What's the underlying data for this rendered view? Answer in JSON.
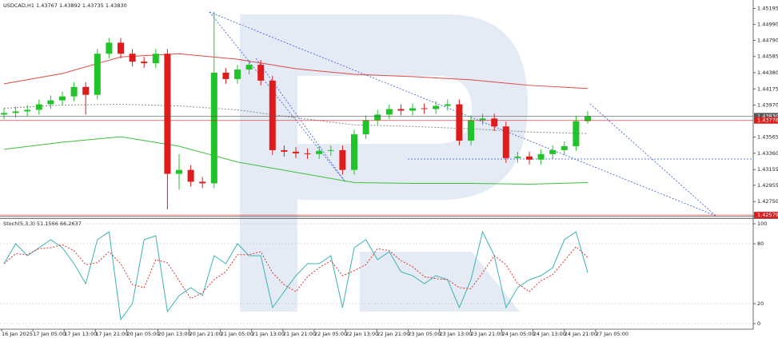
{
  "chart_data": [
    {
      "type": "candlestick",
      "title": "USDCAD,H1 1.43767 1.43892 1.43735 1.43830",
      "open": [
        1.4385,
        1.4387,
        1.4389,
        1.4391,
        1.4398,
        1.4403,
        1.4408,
        1.442,
        1.441,
        1.4462,
        1.4476,
        1.4462,
        1.4452,
        1.445,
        1.4462,
        1.431,
        1.4315,
        1.43,
        1.4298,
        1.4438,
        1.443,
        1.4442,
        1.4448,
        1.4428,
        1.434,
        1.4338,
        1.4336,
        1.4335,
        1.4339,
        1.434,
        1.4315,
        1.436,
        1.4378,
        1.4385,
        1.4392,
        1.439,
        1.4393,
        1.4392,
        1.4396,
        1.4398,
        1.4352,
        1.4378,
        1.438,
        1.437,
        1.433,
        1.4332,
        1.4328,
        1.4335,
        1.434,
        1.4345,
        1.43767
      ],
      "high": [
        1.4393,
        1.4395,
        1.4397,
        1.4404,
        1.4409,
        1.4414,
        1.4426,
        1.4426,
        1.4468,
        1.4482,
        1.4482,
        1.4468,
        1.4458,
        1.4468,
        1.4468,
        1.4335,
        1.4321,
        1.4306,
        1.4515,
        1.4444,
        1.4448,
        1.4454,
        1.4454,
        1.4434,
        1.4346,
        1.4344,
        1.4342,
        1.4345,
        1.4346,
        1.4346,
        1.4366,
        1.4384,
        1.4391,
        1.4398,
        1.4398,
        1.4399,
        1.4399,
        1.4402,
        1.4404,
        1.4404,
        1.4384,
        1.4386,
        1.4386,
        1.4376,
        1.4338,
        1.4338,
        1.4341,
        1.4346,
        1.4351,
        1.4383,
        1.43892
      ],
      "low": [
        1.4379,
        1.4381,
        1.4383,
        1.4385,
        1.4392,
        1.4397,
        1.4402,
        1.4385,
        1.4404,
        1.4456,
        1.4456,
        1.4446,
        1.4444,
        1.4444,
        1.4265,
        1.429,
        1.4294,
        1.4292,
        1.4292,
        1.4424,
        1.4424,
        1.4436,
        1.4422,
        1.4334,
        1.4332,
        1.433,
        1.4329,
        1.4329,
        1.4333,
        1.4309,
        1.4309,
        1.4354,
        1.4372,
        1.4379,
        1.4384,
        1.4384,
        1.4386,
        1.4386,
        1.439,
        1.4346,
        1.4346,
        1.4372,
        1.4364,
        1.4324,
        1.4324,
        1.4322,
        1.4322,
        1.4329,
        1.4334,
        1.4339,
        1.43735
      ],
      "close": [
        1.4387,
        1.4389,
        1.4391,
        1.4398,
        1.4403,
        1.4408,
        1.442,
        1.441,
        1.4462,
        1.4476,
        1.4462,
        1.4452,
        1.445,
        1.4462,
        1.431,
        1.4315,
        1.43,
        1.4298,
        1.4438,
        1.443,
        1.4442,
        1.4448,
        1.4428,
        1.434,
        1.4338,
        1.4336,
        1.4335,
        1.4339,
        1.434,
        1.4315,
        1.436,
        1.4378,
        1.4385,
        1.4392,
        1.439,
        1.4393,
        1.4392,
        1.4396,
        1.4398,
        1.4352,
        1.4378,
        1.438,
        1.437,
        1.433,
        1.4332,
        1.4328,
        1.4335,
        1.434,
        1.4345,
        1.43767,
        1.4383
      ],
      "up_color": "#22c32a",
      "down_color": "#e01b1b",
      "ylim": [
        1.4257,
        1.453
      ],
      "yticks": [
        1.45195,
        {
          "value": 1.4499,
          "label": "1.44990"
        },
        {
          "value": 1.4479,
          "label": "1.44790"
        },
        1.44585,
        {
          "value": 1.4438,
          "label": "1.44380"
        },
        1.44175,
        {
          "value": 1.4397,
          "label": "1.43970"
        },
        1.43565,
        {
          "value": 1.4336,
          "label": "1.43360"
        },
        1.43155,
        1.42955,
        {
          "value": 1.4275,
          "label": "1.42750"
        }
      ],
      "overlays": [
        {
          "color": "#e04848",
          "dashed": false,
          "x": [
            0,
            5,
            10,
            15,
            20,
            25,
            30,
            35,
            40,
            45,
            50
          ],
          "values": [
            1.4424,
            1.4437,
            1.4458,
            1.4462,
            1.4455,
            1.4443,
            1.4436,
            1.4433,
            1.4429,
            1.4422,
            1.4418
          ]
        },
        {
          "color": "#888888",
          "dashed": true,
          "x": [
            0,
            5,
            10,
            15,
            20,
            25,
            30,
            35,
            40,
            45,
            50
          ],
          "values": [
            1.4393,
            1.4397,
            1.4398,
            1.4396,
            1.4391,
            1.4381,
            1.4372,
            1.437,
            1.4367,
            1.4363,
            1.4361
          ]
        },
        {
          "color": "#3cbf3c",
          "dashed": false,
          "x": [
            0,
            5,
            10,
            15,
            20,
            25,
            30,
            35,
            40,
            45,
            50
          ],
          "values": [
            1.4341,
            1.435,
            1.4357,
            1.4345,
            1.4325,
            1.4312,
            1.4299,
            1.4298,
            1.4298,
            1.4297,
            1.4299
          ]
        }
      ],
      "price_lines": [
        {
          "value": 1.4383,
          "label": "1.43830",
          "color": "#555555"
        },
        {
          "value": 1.43776,
          "label": "1.43776",
          "color": "#e01b1b"
        },
        {
          "value": 1.42579,
          "label": "1.42579",
          "color": "#e01b1b"
        }
      ]
    },
    {
      "type": "line",
      "title": "Stoch(5,3,3) 51.1566 66.2637",
      "ylim": [
        -5.6,
        105.6
      ],
      "yticks": [
        0,
        20,
        80,
        100
      ],
      "series": [
        {
          "color": "#3cb4b4",
          "dashed": false,
          "values": [
            60,
            80,
            68,
            76,
            84,
            76,
            60,
            40,
            84,
            92,
            4,
            20,
            84,
            88,
            12,
            28,
            36,
            28,
            68,
            60,
            80,
            68,
            68,
            16,
            32,
            48,
            60,
            60,
            68,
            16,
            76,
            84,
            64,
            72,
            52,
            48,
            40,
            48,
            44,
            16,
            44,
            92,
            68,
            16,
            36,
            44,
            48,
            56,
            84,
            92,
            51.1566
          ]
        },
        {
          "color": "#e03030",
          "dashed": true,
          "values": [
            60,
            70,
            69,
            75,
            76,
            79,
            73,
            59,
            61,
            72,
            60,
            39,
            36,
            64,
            61,
            43,
            25,
            31,
            44,
            52,
            69,
            69,
            72,
            51,
            39,
            32,
            47,
            56,
            63,
            48,
            53,
            59,
            75,
            73,
            63,
            57,
            47,
            45,
            44,
            36,
            35,
            51,
            68,
            59,
            40,
            32,
            43,
            49,
            63,
            77,
            66.2637
          ]
        }
      ],
      "x_labels": [
        "16 Jan 2025",
        "17 Jan 05:00",
        "17 Jan 13:00",
        "17 Jan 21:00",
        "20 Jan 05:00",
        "20 Jan 13:00",
        "20 Jan 21:00",
        "21 Jan 05:00",
        "21 Jan 13:00",
        "21 Jan 21:00",
        "22 Jan 05:00",
        "22 Jan 13:00",
        "22 Jan 21:00",
        "23 Jan 05:00",
        "23 Jan 13:00",
        "23 Jan 21:00",
        "24 Jan 05:00",
        "24 Jan 13:00",
        "24 Jan 21:00",
        "27 Jan 05:00"
      ]
    }
  ]
}
